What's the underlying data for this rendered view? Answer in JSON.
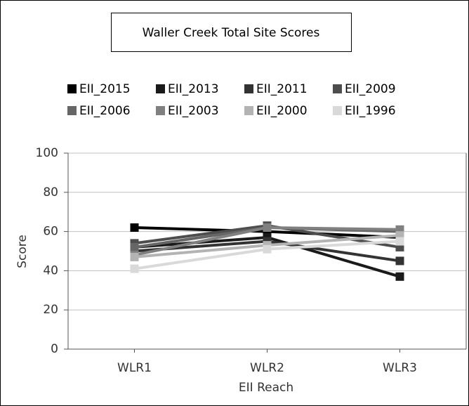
{
  "chart_data": {
    "type": "line",
    "title": "Waller Creek Total Site Scores",
    "xlabel": "EII Reach",
    "ylabel": "Score",
    "categories": [
      "WLR1",
      "WLR2",
      "WLR3"
    ],
    "series": [
      {
        "name": "EII_2015",
        "color": "#000000",
        "values": [
          62,
          60,
          57
        ]
      },
      {
        "name": "EII_2013",
        "color": "#1a1a1a",
        "values": [
          52,
          57,
          37
        ]
      },
      {
        "name": "EII_2011",
        "color": "#333333",
        "values": [
          50,
          55,
          45
        ]
      },
      {
        "name": "EII_2009",
        "color": "#4d4d4d",
        "values": [
          54,
          63,
          52
        ]
      },
      {
        "name": "EII_2006",
        "color": "#666666",
        "values": [
          52,
          62,
          60
        ]
      },
      {
        "name": "EII_2003",
        "color": "#808080",
        "values": [
          48,
          62,
          61
        ]
      },
      {
        "name": "EII_2000",
        "color": "#b3b3b3",
        "values": [
          47,
          53,
          58
        ]
      },
      {
        "name": "EII_1996",
        "color": "#d9d9d9",
        "values": [
          41,
          51,
          55
        ]
      }
    ],
    "ylim": [
      0,
      100
    ],
    "yticks": [
      0,
      20,
      40,
      60,
      80,
      100
    ],
    "grid": true
  }
}
